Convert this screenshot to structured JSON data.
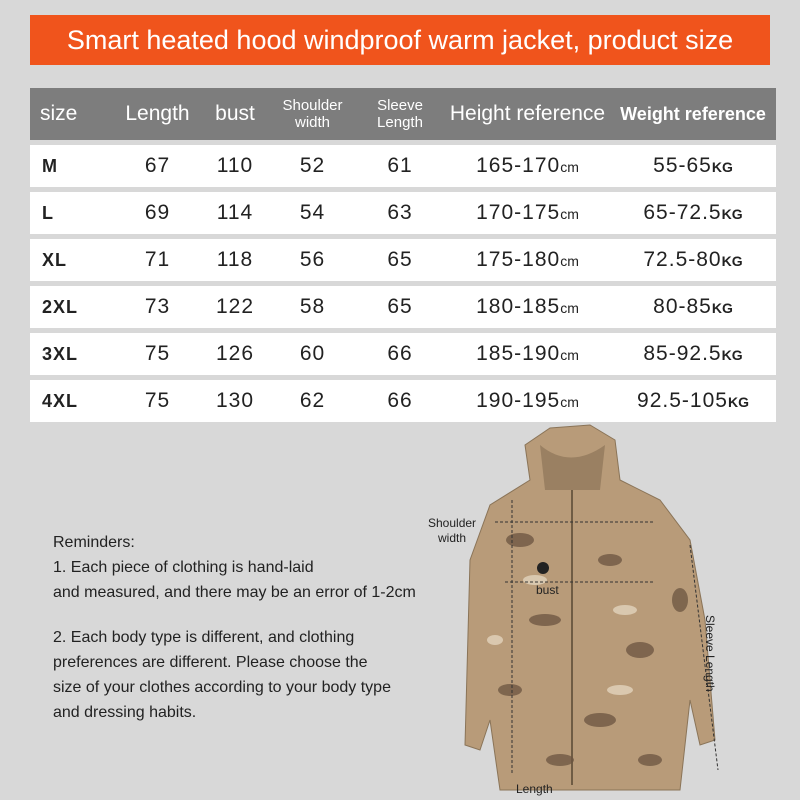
{
  "header": {
    "title": "Smart heated hood windproof warm jacket, product size"
  },
  "table": {
    "headers": [
      "size",
      "Length",
      "bust",
      "Shoulder width",
      "Sleeve Length",
      "Height reference",
      "Weight reference"
    ],
    "rows": [
      [
        "M",
        "67",
        "110",
        "52",
        "61",
        {
          "value": "165-170",
          "unit": "cm"
        },
        {
          "value": "55-65",
          "unit": "KG"
        }
      ],
      [
        "L",
        "69",
        "114",
        "54",
        "63",
        {
          "value": "170-175",
          "unit": "cm"
        },
        {
          "value": "65-72.5",
          "unit": "KG"
        }
      ],
      [
        "XL",
        "71",
        "118",
        "56",
        "65",
        {
          "value": "175-180",
          "unit": "cm"
        },
        {
          "value": "72.5-80",
          "unit": "KG"
        }
      ],
      [
        "2XL",
        "73",
        "122",
        "58",
        "65",
        {
          "value": "180-185",
          "unit": "cm"
        },
        {
          "value": "80-85",
          "unit": "KG"
        }
      ],
      [
        "3XL",
        "75",
        "126",
        "60",
        "66",
        {
          "value": "185-190",
          "unit": "cm"
        },
        {
          "value": "85-92.5",
          "unit": "KG"
        }
      ],
      [
        "4XL",
        "75",
        "130",
        "62",
        "66",
        {
          "value": "190-195",
          "unit": "cm"
        },
        {
          "value": "92.5-105",
          "unit": "KG"
        }
      ]
    ]
  },
  "reminders": {
    "heading": "Reminders:",
    "lines": [
      "1. Each piece of clothing is hand-laid",
      "and measured, and there may be an error of 1-2cm",
      "2. Each body type is different, and clothing",
      "preferences are different. Please choose the",
      "size of your clothes according to your body type",
      "and dressing habits."
    ]
  },
  "diagram": {
    "shoulder": "Shoulder width",
    "bust": "bust",
    "sleeve": "Sleeve Length",
    "length": "Length"
  }
}
